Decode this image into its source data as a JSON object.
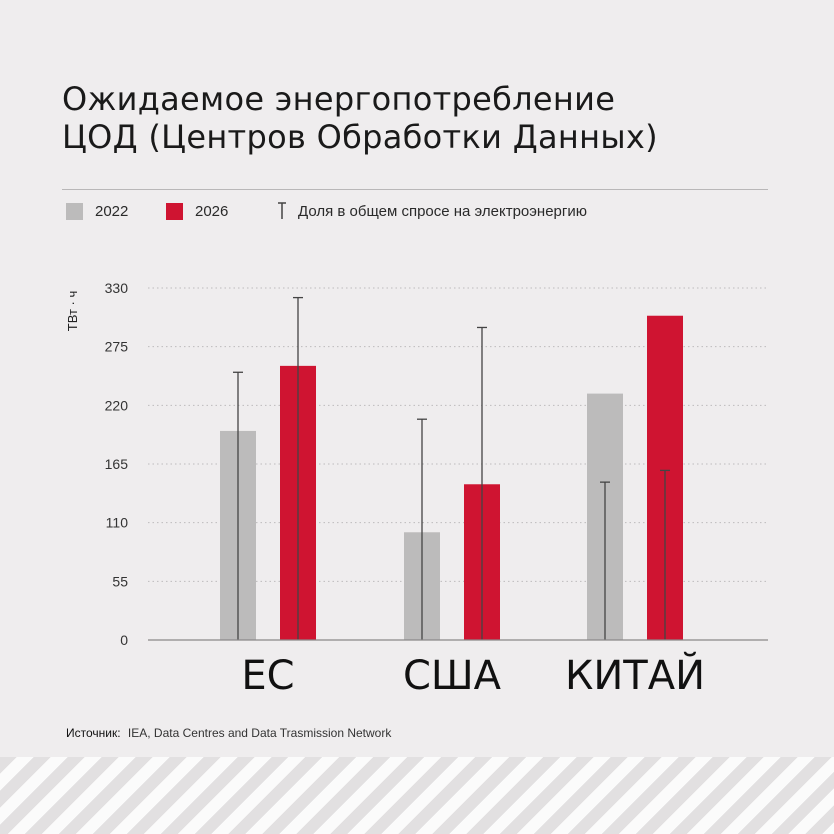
{
  "title_lines": [
    "Ожидаемое энергопотребление",
    "ЦОД (Центров Обработки Данных)"
  ],
  "legend": {
    "y2022_label": "2022",
    "y2026_label": "2026",
    "share_label": "Доля в общем спросе на электроэнергию"
  },
  "colors": {
    "y2022": "#bcbbbb",
    "y2026": "#cf1431",
    "share_line": "#444444",
    "grid": "#bdbbbc"
  },
  "source": {
    "label": "Источник:",
    "text": "IEA, Data Centres and Data Trasmission Network"
  },
  "chart_data": {
    "type": "bar",
    "ylabel": "ТВт · ч",
    "ylim": [
      0,
      330
    ],
    "yticks": [
      "0",
      "55",
      "110",
      "165",
      "220",
      "275",
      "330"
    ],
    "grid": true,
    "legend_position": "top",
    "categories": [
      "ЕС",
      "США",
      "КИТАЙ"
    ],
    "series": [
      {
        "name": "2022",
        "values": [
          196,
          101,
          231
        ]
      },
      {
        "name": "2026",
        "values": [
          257,
          146,
          304
        ]
      }
    ],
    "share_markers": {
      "name": "Доля в общем спросе на электроэнергию",
      "values_2022": [
        251,
        207,
        148
      ],
      "values_2026": [
        321,
        293,
        159
      ]
    }
  }
}
